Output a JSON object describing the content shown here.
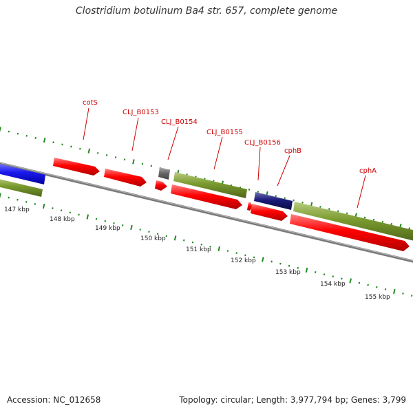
{
  "title": "Clostridium botulinum Ba4 str. 657, complete genome",
  "footer": {
    "accession": "Accession: NC_012658",
    "topology": "Topology: circular; Length: 3,977,794 bp; Genes: 3,799"
  },
  "scale_labels": [
    "147 kbp",
    "148 kbp",
    "149 kbp",
    "150 kbp",
    "151 kbp",
    "152 kbp",
    "153 kbp",
    "154 kbp",
    "155 kbp"
  ],
  "gene_labels": [
    "cotS",
    "CLJ_B0153",
    "CLJ_B0154",
    "CLJ_B0155",
    "CLJ_B0156",
    "cphB",
    "cphA"
  ],
  "colors": {
    "cds": "#ff0000",
    "gene": "#7a9a2e",
    "blue_feature": "#1a1aee",
    "navy_feature": "#1a1a7a",
    "gray_feature": "#666666",
    "backbone": "#888888",
    "ticks": "#228822",
    "label_text": "#cc0000"
  }
}
